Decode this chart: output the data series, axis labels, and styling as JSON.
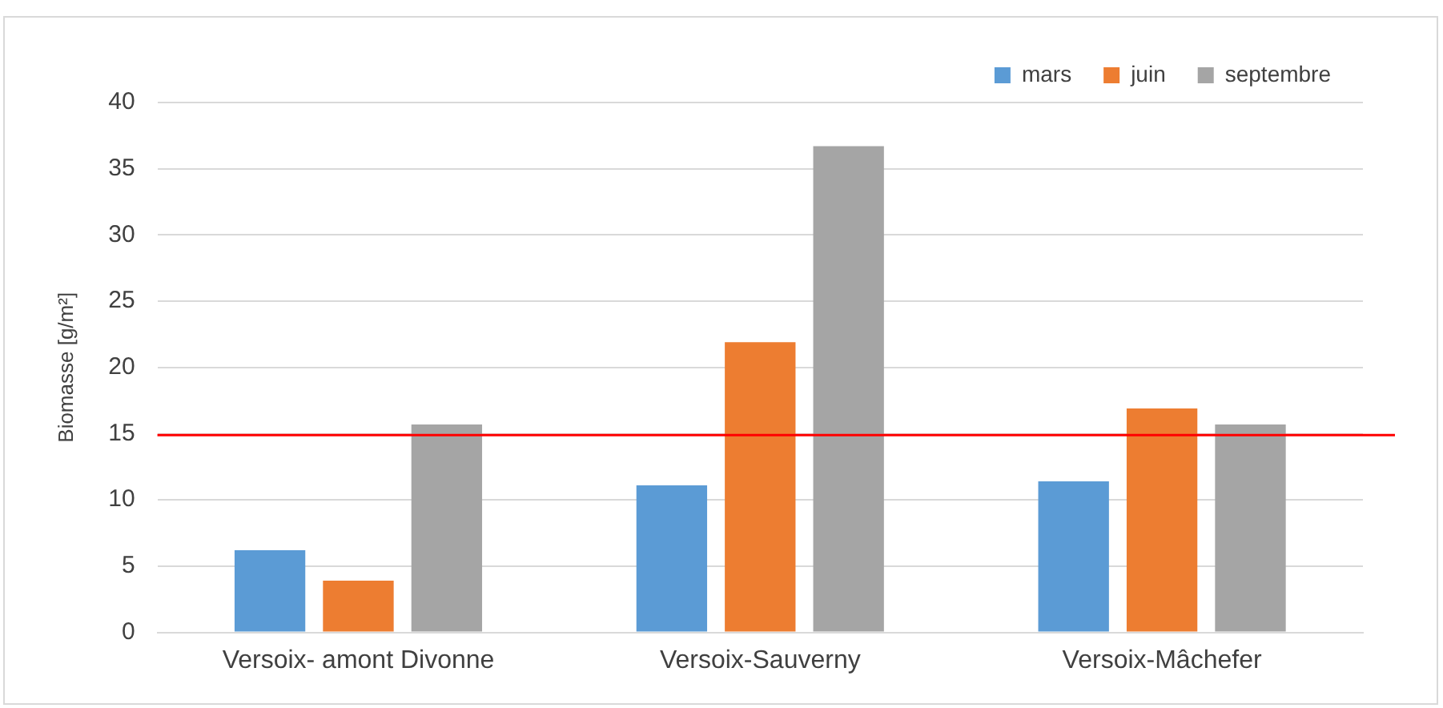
{
  "chart_data": {
    "type": "bar",
    "ylabel": "Biomasse [g/m²]",
    "categories": [
      "Versoix- amont Divonne",
      "Versoix-Sauverny",
      "Versoix-Mâchefer"
    ],
    "series": [
      {
        "name": "mars",
        "color": "#5b9bd5",
        "values": [
          6.2,
          11.1,
          11.4
        ]
      },
      {
        "name": "juin",
        "color": "#ed7d31",
        "values": [
          3.9,
          21.9,
          16.9
        ]
      },
      {
        "name": "septembre",
        "color": "#a5a5a5",
        "values": [
          15.7,
          36.7,
          15.7
        ]
      }
    ],
    "ylim": [
      0,
      40
    ],
    "yticks": [
      0,
      5,
      10,
      15,
      20,
      25,
      30,
      35,
      40
    ],
    "grid": "y",
    "legend": "top right",
    "ref_lines": [
      {
        "axis": "y",
        "value": 14.9,
        "color": "#ff0000"
      }
    ]
  }
}
